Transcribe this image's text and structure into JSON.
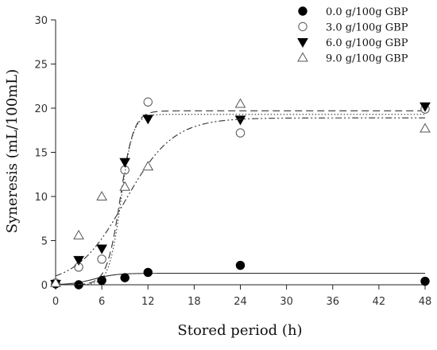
{
  "chart_data": {
    "type": "scatter",
    "xlabel": "Stored period (h)",
    "ylabel": "Syneresis (mL/100mL)",
    "xlim": [
      0,
      48
    ],
    "ylim": [
      0,
      30
    ],
    "xticks": [
      0,
      6,
      12,
      18,
      24,
      30,
      36,
      42,
      48
    ],
    "yticks": [
      0,
      5,
      10,
      15,
      20,
      25,
      30
    ],
    "grid": false,
    "legend_position": "top-right",
    "series": [
      {
        "name": "0.0 g/100g GBP",
        "marker": "filled-circle",
        "line_style": "solid",
        "points": [
          [
            0,
            0.1
          ],
          [
            3,
            0.0
          ],
          [
            6,
            0.5
          ],
          [
            9,
            0.8
          ],
          [
            12,
            1.4
          ],
          [
            24,
            2.2
          ],
          [
            48,
            0.4
          ]
        ],
        "fit": {
          "min": 0.0,
          "max": 1.3,
          "x0": 5.0,
          "k": 0.7
        }
      },
      {
        "name": "3.0 g/100g GBP",
        "marker": "open-circle",
        "line_style": "long-dash",
        "points": [
          [
            0,
            0.2
          ],
          [
            3,
            2.0
          ],
          [
            6,
            2.9
          ],
          [
            9,
            13.0
          ],
          [
            12,
            20.7
          ],
          [
            24,
            17.2
          ],
          [
            48,
            19.9
          ]
        ],
        "fit": {
          "min": 0.0,
          "max": 19.7,
          "x0": 8.4,
          "k": 1.15
        }
      },
      {
        "name": "6.0 g/100g GBP",
        "marker": "filled-triangle-down",
        "line_style": "dotted",
        "points": [
          [
            0,
            0.1
          ],
          [
            3,
            2.8
          ],
          [
            6,
            4.1
          ],
          [
            9,
            13.9
          ],
          [
            12,
            18.8
          ],
          [
            24,
            18.7
          ],
          [
            48,
            20.2
          ]
        ],
        "fit": {
          "min": 0.0,
          "max": 19.3,
          "x0": 8.5,
          "k": 1.3
        }
      },
      {
        "name": "9.0 g/100g GBP",
        "marker": "open-triangle-up",
        "line_style": "dash-dot-dot",
        "points": [
          [
            0,
            0.2
          ],
          [
            3,
            5.6
          ],
          [
            6,
            10.0
          ],
          [
            9,
            11.1
          ],
          [
            12,
            13.4
          ],
          [
            24,
            20.5
          ],
          [
            48,
            17.7
          ]
        ],
        "fit": {
          "min": 0.0,
          "max": 18.9,
          "x0": 9.0,
          "k": 0.32
        }
      }
    ]
  }
}
